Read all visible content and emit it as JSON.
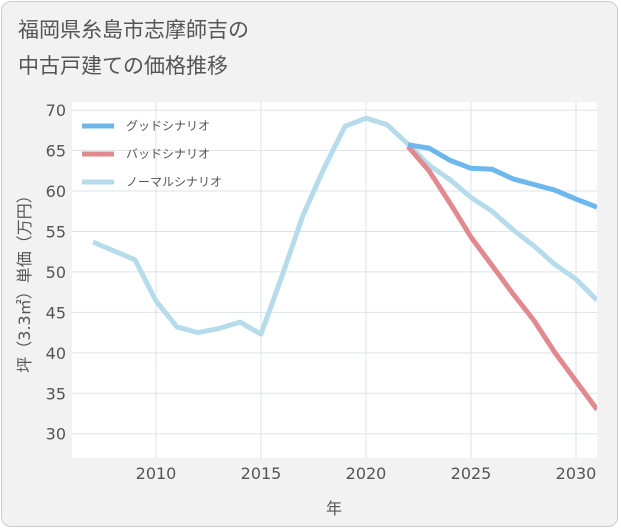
{
  "title": "福岡県糸島市志摩師吉の\n中古戸建ての価格推移",
  "chart_data": {
    "type": "line",
    "title": "福岡県糸島市志摩師吉の\n中古戸建ての価格推移",
    "xlabel": "年",
    "ylabel": "坪（3.3㎡）単価（万円）",
    "xlim": [
      2006,
      2031
    ],
    "ylim": [
      27,
      71
    ],
    "xticks": [
      2010,
      2015,
      2020,
      2025,
      2030
    ],
    "yticks": [
      30,
      35,
      40,
      45,
      50,
      55,
      60,
      65,
      70
    ],
    "grid": true,
    "legend_position": "top-left",
    "series": [
      {
        "name": "グッドシナリオ",
        "color": "#6cb8ec",
        "points": [
          [
            2022,
            65.7
          ],
          [
            2023,
            65.3
          ],
          [
            2024,
            63.8
          ],
          [
            2025,
            62.8
          ],
          [
            2026,
            62.7
          ],
          [
            2027,
            61.5
          ],
          [
            2028,
            60.8
          ],
          [
            2029,
            60.1
          ],
          [
            2030,
            59.0
          ],
          [
            2031,
            58.0
          ]
        ]
      },
      {
        "name": "バッドシナリオ",
        "color": "#e08a90",
        "points": [
          [
            2022,
            65.5
          ],
          [
            2023,
            62.5
          ],
          [
            2024,
            58.5
          ],
          [
            2025,
            54.3
          ],
          [
            2026,
            50.8
          ],
          [
            2027,
            47.3
          ],
          [
            2028,
            44.0
          ],
          [
            2029,
            40.0
          ],
          [
            2030,
            36.5
          ],
          [
            2031,
            33.0
          ]
        ]
      },
      {
        "name": "ノーマルシナリオ",
        "color": "#b6dcec",
        "points": [
          [
            2007,
            53.7
          ],
          [
            2008,
            52.6
          ],
          [
            2009,
            51.5
          ],
          [
            2010,
            46.4
          ],
          [
            2011,
            43.2
          ],
          [
            2012,
            42.5
          ],
          [
            2013,
            43.0
          ],
          [
            2014,
            43.8
          ],
          [
            2015,
            42.3
          ],
          [
            2016,
            49.5
          ],
          [
            2017,
            57.0
          ],
          [
            2018,
            62.8
          ],
          [
            2019,
            68.0
          ],
          [
            2020,
            69.0
          ],
          [
            2021,
            68.2
          ],
          [
            2022,
            65.8
          ],
          [
            2023,
            63.2
          ],
          [
            2024,
            61.4
          ],
          [
            2025,
            59.2
          ],
          [
            2026,
            57.5
          ],
          [
            2027,
            55.2
          ],
          [
            2028,
            53.2
          ],
          [
            2029,
            50.9
          ],
          [
            2030,
            49.1
          ],
          [
            2031,
            46.5
          ]
        ]
      }
    ]
  }
}
